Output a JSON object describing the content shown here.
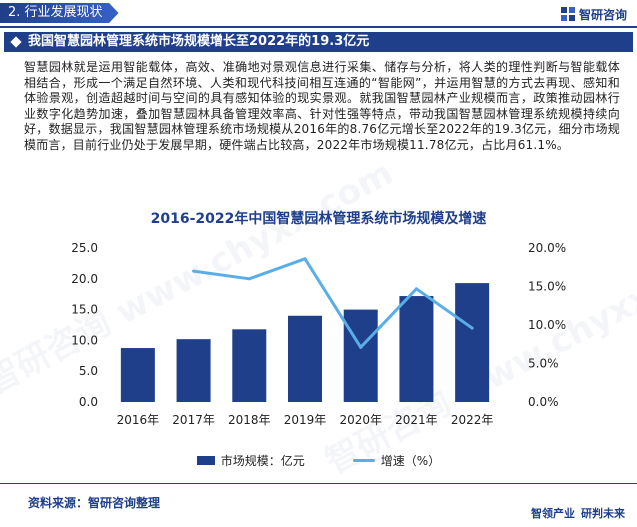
{
  "header": {
    "section_label": "2. 行业发展现状",
    "brand_name": "智研咨询"
  },
  "title": "我国智慧园林管理系统市场规模增长至2022年的19.3亿元",
  "paragraph": "智慧园林就是运用智能载体，高效、准确地对景观信息进行采集、储存与分析，将人类的理性判断与智能载体相结合，形成一个满足自然环境、人类和现代科技间相互连通的“智能网”，并运用智慧的方式去再现、感知和体验景观，创造超越时间与空间的具有感知体验的现实景观。就我国智慧园林产业规模而言，政策推动园林行业数字化趋势加速，叠加智慧园林具备管理效率高、针对性强等特点，带动我国智慧园林管理系统规模持续向好，数据显示，我国智慧园林管理系统市场规模从2016年的8.76亿元增长至2022年的19.3亿元，细分市场规模而言，目前行业仍处于发展早期，硬件端占比较高，2022年市场规模11.78亿元，占比月61.1%。",
  "chart_data": {
    "type": "bar",
    "title": "2016-2022年中国智慧园林管理系统市场规模及增速",
    "categories": [
      "2016年",
      "2017年",
      "2018年",
      "2019年",
      "2020年",
      "2021年",
      "2022年"
    ],
    "series": [
      {
        "name": "市场规模：亿元",
        "type": "bar",
        "axis": "left",
        "color": "#1f3f8a",
        "values": [
          8.76,
          10.2,
          11.8,
          14.0,
          15.0,
          17.2,
          19.3
        ]
      },
      {
        "name": "增速（%）",
        "type": "line",
        "axis": "right",
        "color": "#5aaee8",
        "values": [
          null,
          17.0,
          16.0,
          18.6,
          7.1,
          14.7,
          9.6
        ]
      }
    ],
    "y_left": {
      "min": 0,
      "max": 25,
      "ticks": [
        "0.0",
        "5.0",
        "10.0",
        "15.0",
        "20.0",
        "25.0"
      ]
    },
    "y_right": {
      "min": 0,
      "max": 20,
      "ticks": [
        "0.0%",
        "5.0%",
        "10.0%",
        "15.0%",
        "20.0%"
      ]
    },
    "legend_placement": "bottom",
    "grid": false
  },
  "source": "资料来源：智研咨询整理",
  "footer_slogan": [
    "智领产业",
    "研判未来"
  ],
  "watermark": "智研咨询 www.chyxx.com"
}
